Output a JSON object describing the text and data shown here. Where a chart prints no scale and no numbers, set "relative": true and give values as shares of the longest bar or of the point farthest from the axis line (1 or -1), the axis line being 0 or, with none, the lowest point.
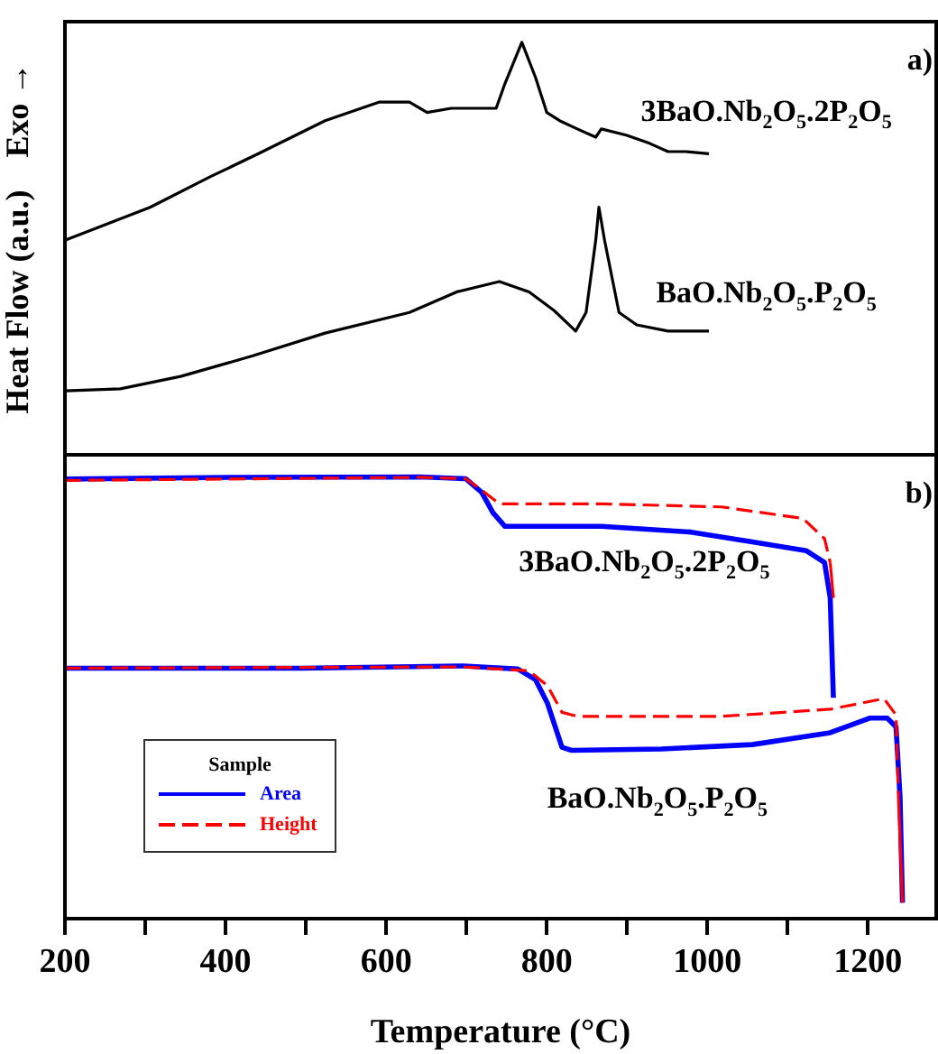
{
  "chart_data": [
    {
      "type": "line",
      "ylabel": "Heat Flow (a.u.)    Exo →",
      "relative": true,
      "xlim": [
        200,
        1285
      ],
      "tick_labels": false,
      "marker": "none",
      "annotations": [
        "a)",
        "3BaO.Nb$_{2}$O$_{5}$.2P$_{2}$O$_{5}$",
        "BaO.Nb$_{2}$O$_{5}$.P$_{2}$O$_{5}$"
      ],
      "series": [
        {
          "color": "#000000",
          "x": [
            200,
            306,
            382,
            441,
            524,
            591,
            629,
            651,
            681,
            711,
            737,
            748,
            769,
            786,
            800,
            816,
            838,
            861,
            868,
            899,
            928,
            951,
            973,
            1002
          ],
          "values": [
            0.52,
            0.6,
            0.675,
            0.73,
            0.81,
            0.855,
            0.855,
            0.83,
            0.84,
            0.84,
            0.84,
            0.9,
            1.0,
            0.915,
            0.83,
            0.81,
            0.79,
            0.77,
            0.79,
            0.775,
            0.755,
            0.735,
            0.735,
            0.73
          ]
        },
        {
          "color": "#000000",
          "x": [
            200,
            269,
            344,
            434,
            524,
            629,
            688,
            741,
            778,
            809,
            836,
            849,
            861,
            865,
            872,
            890,
            912,
            951,
            1002
          ],
          "values": [
            0.155,
            0.16,
            0.19,
            0.24,
            0.295,
            0.345,
            0.395,
            0.42,
            0.395,
            0.35,
            0.3,
            0.345,
            0.52,
            0.6,
            0.52,
            0.345,
            0.315,
            0.3,
            0.3
          ]
        }
      ]
    },
    {
      "type": "line",
      "xlabel": "Temperature (°C)",
      "relative": true,
      "xlim": [
        200,
        1285
      ],
      "xticks": [
        200,
        {
          "value": 300,
          "label": null
        },
        400,
        {
          "value": 500,
          "label": null
        },
        600,
        {
          "value": 700,
          "label": null
        },
        800,
        {
          "value": 900,
          "label": null
        },
        1000,
        {
          "value": 1100,
          "label": null
        },
        1200
      ],
      "tick_labels": "x",
      "marker": "none",
      "legend": "bottom left",
      "legend_title": "Sample",
      "annotations": [
        "b)",
        "3BaO.Nb$_{2}$O$_{5}$.2P$_{2}$O$_{5}$",
        "BaO.Nb$_{2}$O$_{5}$.P$_{2}$O$_{5}$"
      ],
      "series": [
        {
          "name": "Area",
          "color": "#0000ff",
          "line_style": "solid",
          "x": [
            200,
            418,
            643,
            699,
            719,
            733,
            748,
            868,
            980,
            1056,
            1123,
            1146,
            1153,
            1157
          ],
          "values": [
            0.995,
            0.999,
            1.0,
            0.996,
            0.965,
            0.919,
            0.888,
            0.888,
            0.875,
            0.853,
            0.833,
            0.806,
            0.726,
            0.5
          ]
        },
        {
          "name": "Height",
          "color": "#ff0000",
          "line_style": "dashed",
          "x": [
            200,
            643,
            699,
            719,
            741,
            868,
            1018,
            1119,
            1146,
            1153,
            1157
          ],
          "values": [
            0.992,
            0.999,
            0.996,
            0.97,
            0.939,
            0.939,
            0.932,
            0.906,
            0.86,
            0.806,
            0.726
          ]
        },
        {
          "color": "#0000ff",
          "line_style": "solid",
          "x": [
            200,
            494,
            696,
            764,
            786,
            801,
            819,
            831,
            943,
            1056,
            1153,
            1202,
            1224,
            1235,
            1240,
            1243
          ],
          "values": [
            0.567,
            0.567,
            0.572,
            0.565,
            0.541,
            0.487,
            0.388,
            0.381,
            0.384,
            0.394,
            0.421,
            0.454,
            0.454,
            0.434,
            0.275,
            0.036
          ]
        },
        {
          "color": "#ff0000",
          "line_style": "dashed",
          "x": [
            200,
            696,
            778,
            801,
            819,
            838,
            1018,
            1153,
            1220,
            1235,
            1238,
            1243
          ],
          "values": [
            0.567,
            0.57,
            0.561,
            0.527,
            0.467,
            0.458,
            0.458,
            0.474,
            0.498,
            0.461,
            0.275,
            0.036
          ]
        }
      ]
    }
  ]
}
